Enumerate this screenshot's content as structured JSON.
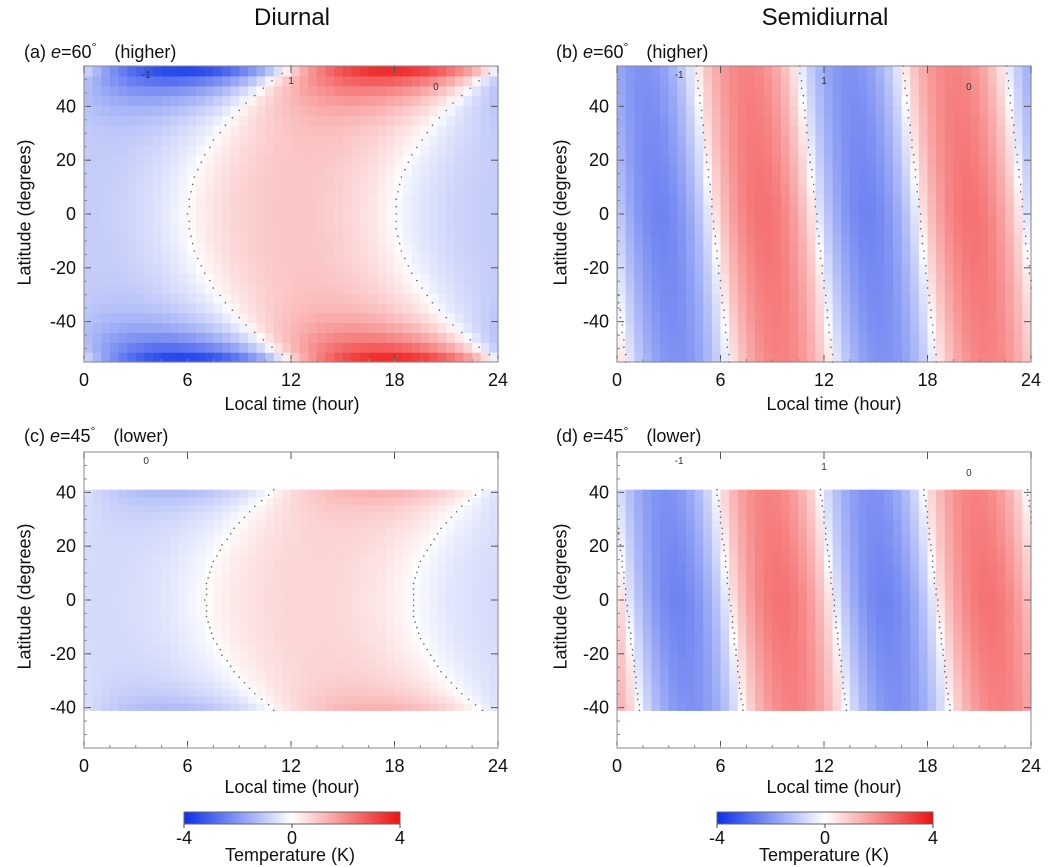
{
  "columns": {
    "left": "Diurnal",
    "right": "Semidiurnal"
  },
  "colormap": {
    "negative": "#0b2fe8",
    "zero": "#ffffff",
    "positive": "#ee1111"
  },
  "panels": {
    "a": {
      "tag": "(a)",
      "e_value": "=60",
      "deg": "°",
      "level": "(higher)",
      "ylabel": "Latitude (degrees)",
      "xlabel": "Local time (hour)"
    },
    "b": {
      "tag": "(b)",
      "e_value": "=60",
      "deg": "°",
      "level": "(higher)",
      "ylabel": "Latitude (degrees)",
      "xlabel": "Local time (hour)"
    },
    "c": {
      "tag": "(c)",
      "e_value": "=45",
      "deg": "°",
      "level": "(lower)",
      "ylabel": "Latitude (degrees)",
      "xlabel": "Local time (hour)"
    },
    "d": {
      "tag": "(d)",
      "e_value": "=45",
      "deg": "°",
      "level": "(lower)",
      "ylabel": "Latitude (degrees)",
      "xlabel": "Local time (hour)"
    }
  },
  "colorbars": [
    {
      "ticks": [
        "-4",
        "0",
        "4"
      ],
      "label": "Temperature (K)"
    },
    {
      "ticks": [
        "-4",
        "0",
        "4"
      ],
      "label": "Temperature (K)"
    }
  ],
  "chart_data": [
    {
      "id": "a",
      "type": "heatmap",
      "xlim": [
        0,
        24
      ],
      "ylim": [
        -55,
        55
      ],
      "xticks": [
        0,
        6,
        12,
        18,
        24
      ],
      "yticks": [
        -40,
        -20,
        0,
        20,
        40
      ],
      "xlabel": "Local time (hour)",
      "ylabel": "Latitude (degrees)",
      "harmonic": "diurnal",
      "lat_extent": 55,
      "amplitude_equator": 0.6,
      "amplitude_edge": 4.0,
      "phase_peak_hour_equator": 12,
      "phase_peak_hour_edge": 18,
      "contour_labels": [
        "-1",
        "1",
        "0"
      ],
      "clim": [
        -4,
        4
      ]
    },
    {
      "id": "b",
      "type": "heatmap",
      "xlim": [
        0,
        24
      ],
      "ylim": [
        -55,
        55
      ],
      "xticks": [
        0,
        6,
        12,
        18,
        24
      ],
      "yticks": [
        -40,
        -20,
        0,
        20,
        40
      ],
      "xlabel": "Local time (hour)",
      "ylabel": "Latitude (degrees)",
      "harmonic": "semidiurnal",
      "lat_extent": 55,
      "amplitude": 2.0,
      "peak_hours": [
        8.5,
        20.5
      ],
      "trough_hours": [
        2.5,
        14.5
      ],
      "contour_labels": [
        "-1",
        "1",
        "0"
      ],
      "clim": [
        -4,
        4
      ]
    },
    {
      "id": "c",
      "type": "heatmap",
      "xlim": [
        0,
        24
      ],
      "ylim": [
        -55,
        55
      ],
      "xticks": [
        0,
        6,
        12,
        18,
        24
      ],
      "yticks": [
        -40,
        -20,
        0,
        20,
        40
      ],
      "xlabel": "Local time (hour)",
      "ylabel": "Latitude (degrees)",
      "harmonic": "diurnal",
      "lat_extent": 41,
      "amplitude_equator": 0.4,
      "amplitude_edge": 1.0,
      "phase_peak_hour_equator": 13,
      "phase_peak_hour_edge": 17,
      "contour_labels": [
        "0"
      ],
      "clim": [
        -4,
        4
      ]
    },
    {
      "id": "d",
      "type": "heatmap",
      "xlim": [
        0,
        24
      ],
      "ylim": [
        -55,
        55
      ],
      "xticks": [
        0,
        6,
        12,
        18,
        24
      ],
      "yticks": [
        -40,
        -20,
        0,
        20,
        40
      ],
      "xlabel": "Local time (hour)",
      "ylabel": "Latitude (degrees)",
      "harmonic": "semidiurnal",
      "lat_extent": 41,
      "amplitude": 2.0,
      "peak_hours": [
        9.5,
        21.5
      ],
      "trough_hours": [
        3.5,
        15.5
      ],
      "contour_labels": [
        "-1",
        "1",
        "0"
      ],
      "clim": [
        -4,
        4
      ]
    }
  ]
}
